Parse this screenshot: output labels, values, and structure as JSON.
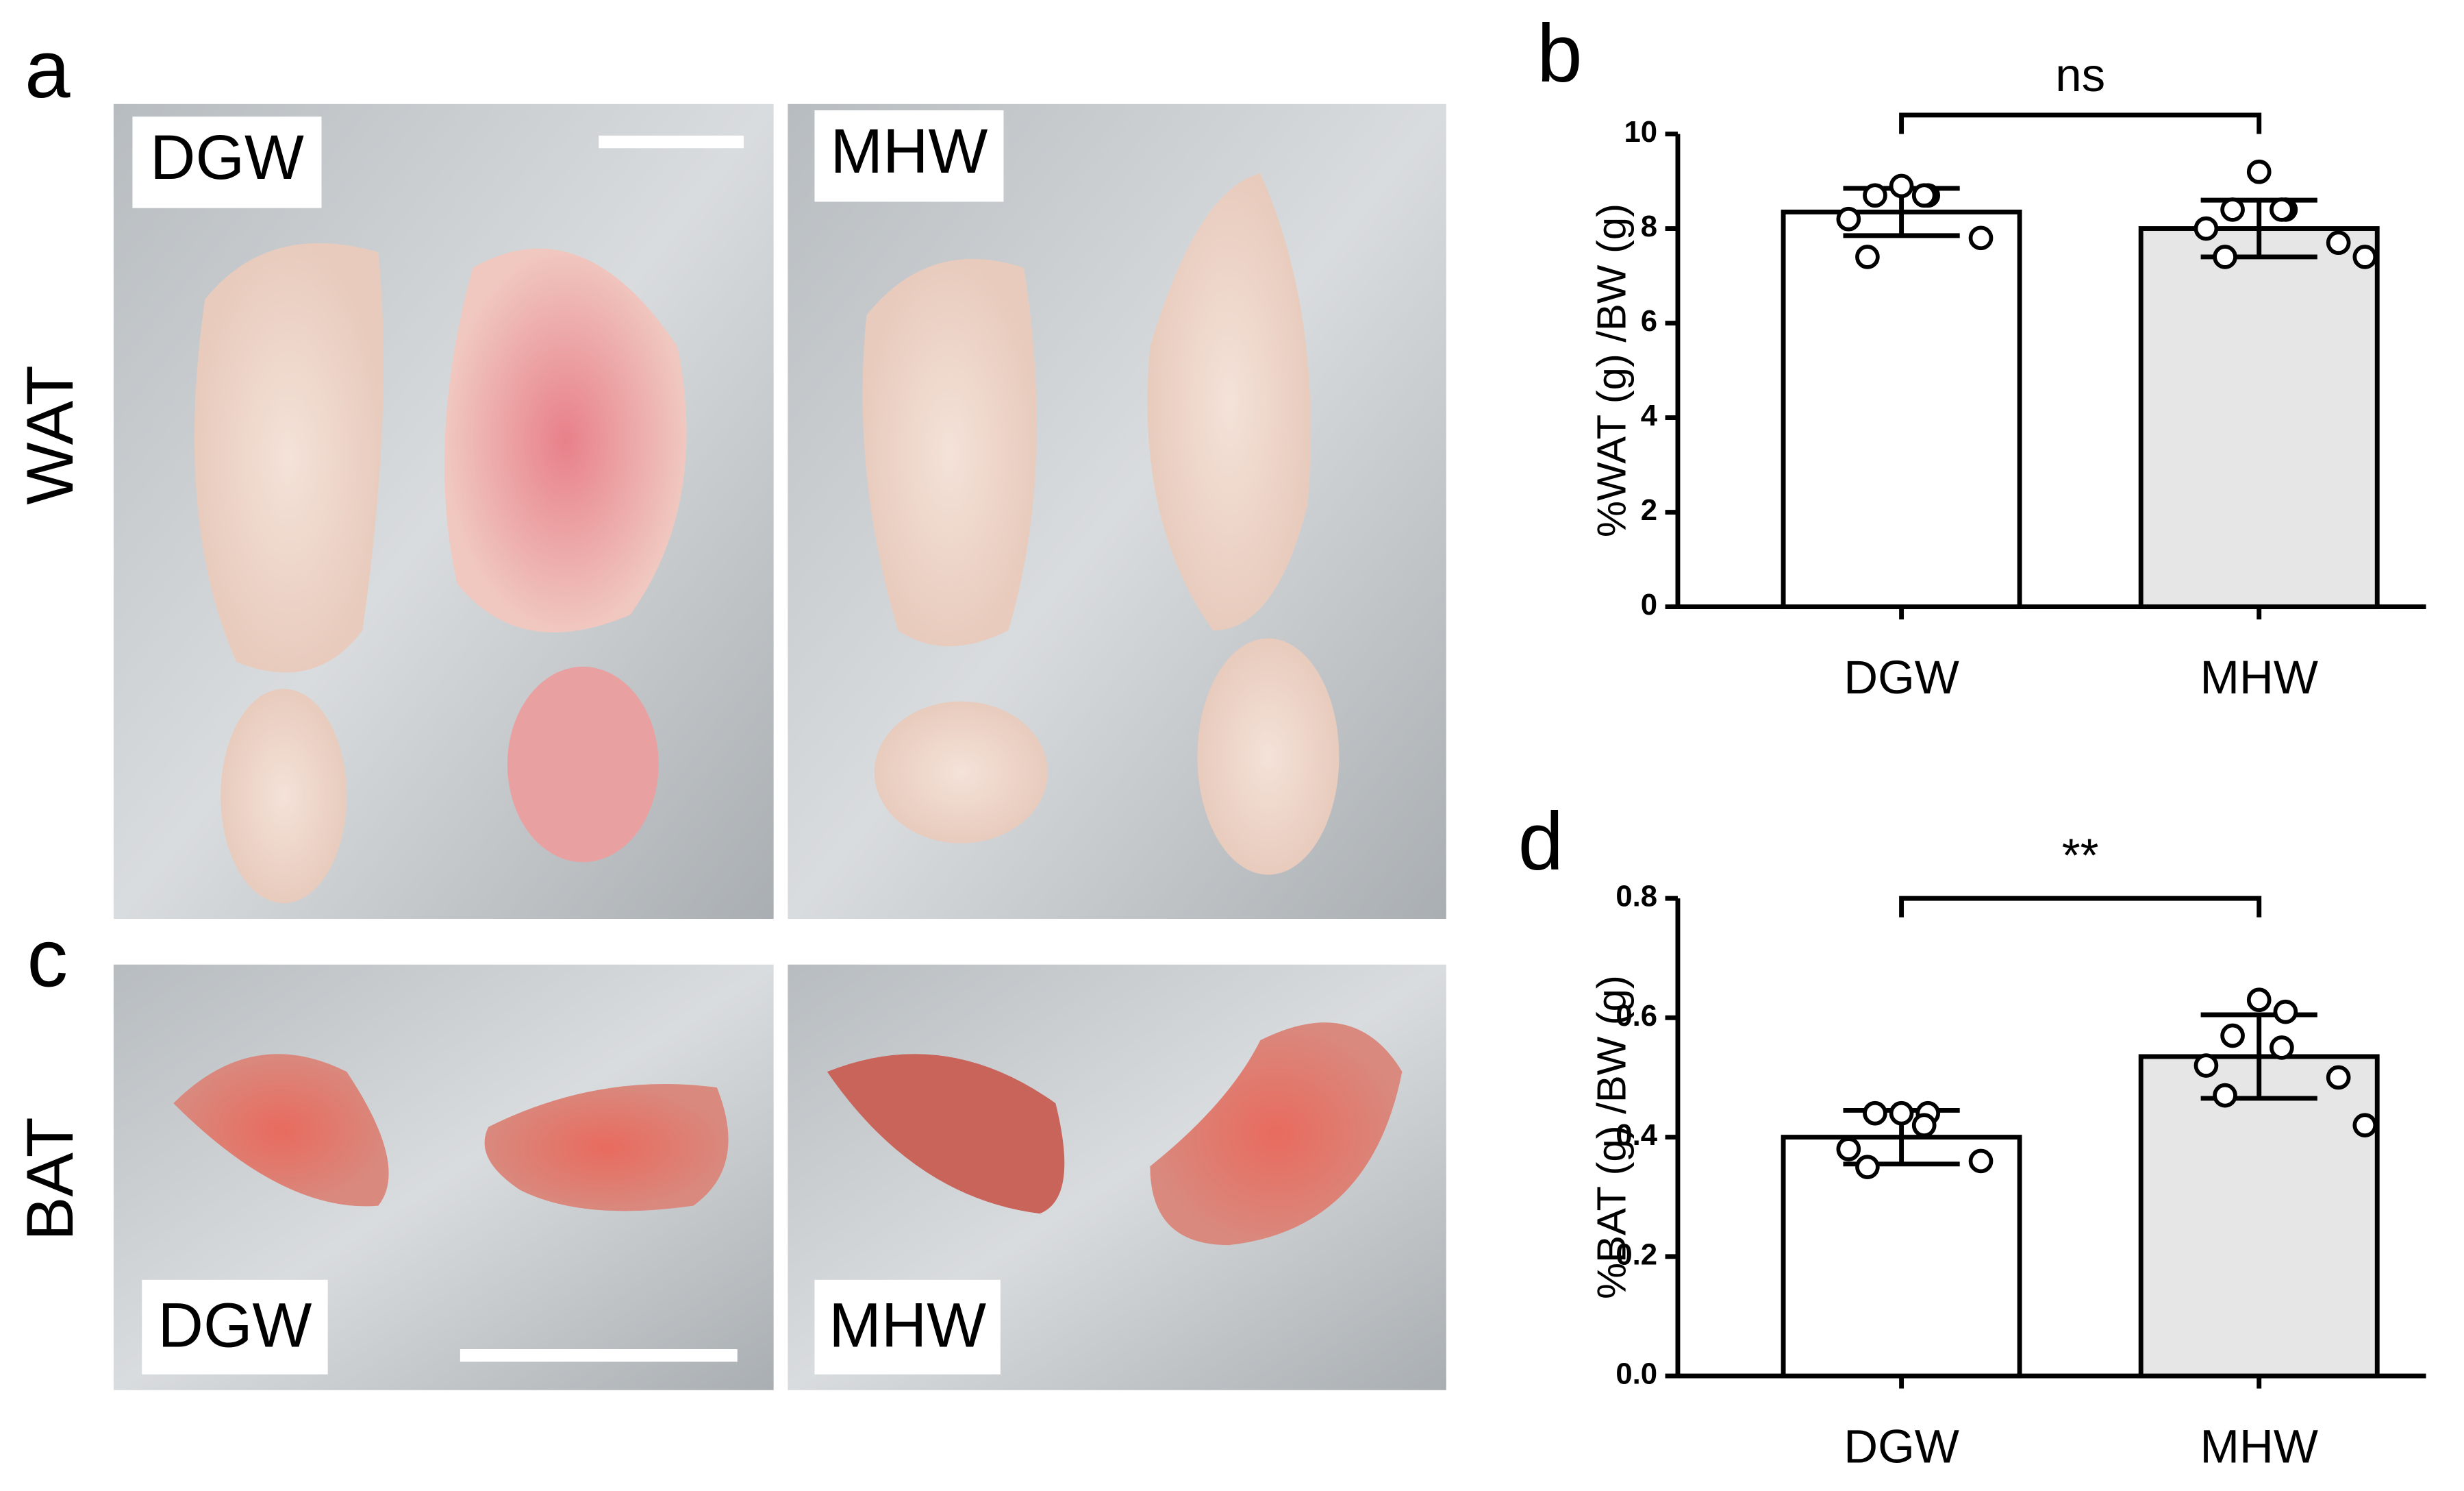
{
  "figure": {
    "letters": [
      "a",
      "c"
    ],
    "rows": [
      "WAT",
      "BAT"
    ],
    "photo_labels": [
      "DGW",
      "MHW",
      "DGW",
      "MHW"
    ]
  },
  "chart_data": [
    {
      "type": "bar",
      "letter": "b",
      "ylabel": "%WAT (g) /BW (g)",
      "categories": [
        "DGW",
        "MHW"
      ],
      "values": [
        8.35,
        8.0
      ],
      "errors": [
        0.5,
        0.6
      ],
      "colors": [
        "#ffffff",
        "#e6e6e6"
      ],
      "points": [
        [
          8.9,
          8.7,
          8.7,
          8.7,
          8.2,
          7.8,
          7.4
        ],
        [
          9.2,
          8.4,
          8.4,
          8.4,
          8.0,
          7.7,
          7.4,
          7.4
        ]
      ],
      "significance": "ns",
      "ylim": [
        0,
        10
      ],
      "yticks": [
        0,
        2,
        4,
        6,
        8,
        10
      ]
    },
    {
      "type": "bar",
      "letter": "d",
      "ylabel": "%BAT (g) /BW (g)",
      "categories": [
        "DGW",
        "MHW"
      ],
      "values": [
        0.4,
        0.535
      ],
      "errors": [
        0.045,
        0.07
      ],
      "colors": [
        "#ffffff",
        "#e6e6e6"
      ],
      "points": [
        [
          0.44,
          0.44,
          0.44,
          0.42,
          0.38,
          0.36,
          0.35
        ],
        [
          0.63,
          0.61,
          0.57,
          0.55,
          0.52,
          0.5,
          0.47,
          0.42
        ]
      ],
      "significance": "**",
      "ylim": [
        0,
        0.8
      ],
      "yticks": [
        {
          "value": 0,
          "label": "0.0"
        },
        0.2,
        0.4,
        0.6,
        0.8
      ]
    }
  ]
}
